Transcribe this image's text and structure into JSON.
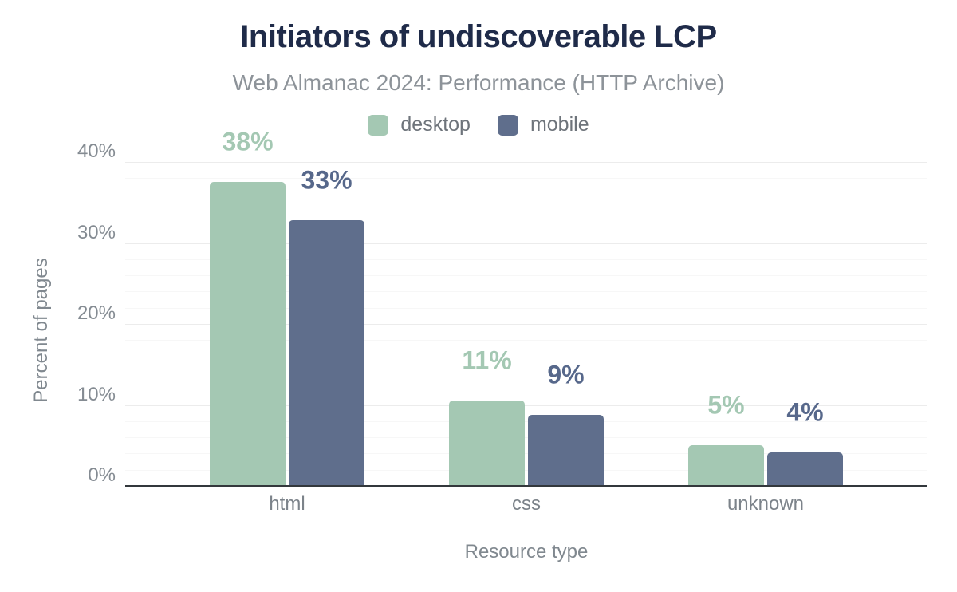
{
  "chart_data": {
    "type": "bar",
    "title": "Initiators of undiscoverable LCP",
    "subtitle": "Web Almanac 2024: Performance (HTTP Archive)",
    "xlabel": "Resource type",
    "ylabel": "Percent of pages",
    "categories": [
      "html",
      "css",
      "unknown"
    ],
    "series": [
      {
        "name": "desktop",
        "color": "#a4c8b3",
        "label_color": "#a4c8b3",
        "values": [
          37.6,
          10.6,
          5.1
        ],
        "labels": [
          "38%",
          "11%",
          "5%"
        ]
      },
      {
        "name": "mobile",
        "color": "#5f6e8c",
        "label_color": "#57688b",
        "values": [
          32.9,
          8.9,
          4.2
        ],
        "labels": [
          "33%",
          "9%",
          "4%"
        ]
      }
    ],
    "y_axis": {
      "min": 0,
      "max": 40,
      "tick_labels": [
        "0%",
        "10%",
        "20%",
        "30%",
        "40%"
      ],
      "tick_values": [
        0,
        10,
        20,
        30,
        40
      ],
      "minor_step": 2
    },
    "legend_position": "top",
    "grid": "horizontal-only"
  },
  "colors": {
    "background": "#ffffff",
    "title": "#1f2b49",
    "subtitle": "#8d9399",
    "axis_text": "#80888f",
    "tick_text": "#848b92",
    "category_text": "#7c838a",
    "legend_text": "#6e747b",
    "axis_line": "#33383c",
    "grid_major": "#ececec",
    "grid_minor": "#f7f7f7"
  }
}
